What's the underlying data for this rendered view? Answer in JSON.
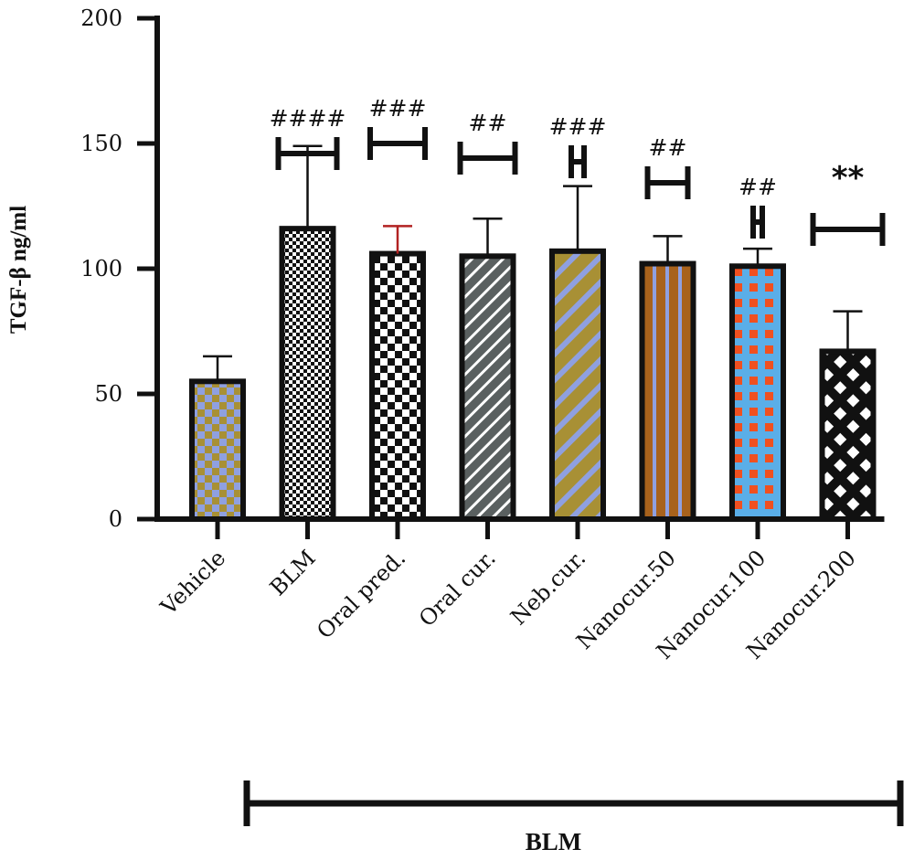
{
  "chart_data": {
    "type": "bar",
    "ylabel": "TGF-β ng/ml",
    "ylim": [
      0,
      200
    ],
    "yticks": [
      0,
      50,
      100,
      150,
      200
    ],
    "categories": [
      "Vehicle",
      "BLM",
      "Oral pred.",
      "Oral cur.",
      "Neb.cur.",
      "Nanocur.50",
      "Nanocur.100",
      "Nanocur.200"
    ],
    "values": [
      55,
      116,
      106,
      105,
      107,
      102,
      101,
      67
    ],
    "error_upper": [
      65,
      149,
      117,
      120,
      133,
      113,
      108,
      83
    ],
    "significance": [
      "",
      "####",
      "###",
      "##",
      "###",
      "##",
      "##",
      "**"
    ],
    "bar_colors": {
      "Vehicle": [
        "#a89035",
        "#8fa0e0"
      ],
      "BLM": [
        "#111111",
        "#ffffff"
      ],
      "Oral pred.": [
        "#111111",
        "#ffffff"
      ],
      "Oral cur.": [
        "#5a6060",
        "#ffffff"
      ],
      "Neb.cur.": [
        "#a89035",
        "#8fa0e0"
      ],
      "Nanocur.50": [
        "#a8621c",
        "#8fa0e0"
      ],
      "Nanocur.100": [
        "#f05020",
        "#5aaee8"
      ],
      "Nanocur.200": [
        "#111111",
        "#ffffff"
      ],
      "Oral pred. error bar": "#b22222"
    },
    "group_label": "BLM",
    "group_span": [
      "BLM",
      "Nanocur.200"
    ],
    "grid": false,
    "legend": "none"
  }
}
